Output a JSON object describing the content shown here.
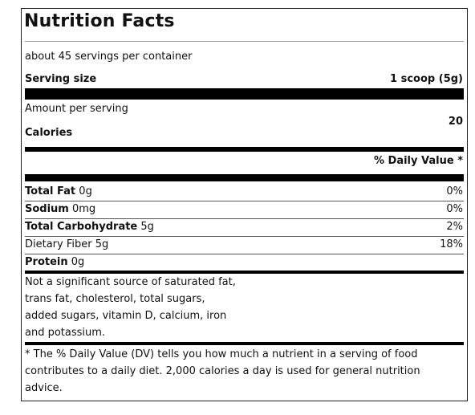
{
  "title": "Nutrition Facts",
  "servings_per_container": "about 45 servings per container",
  "serving_size": {
    "label": "Serving size",
    "value": "1 scoop (5g)"
  },
  "amount_per_serving": "Amount per serving",
  "calories": {
    "label": "Calories",
    "value": "20"
  },
  "daily_value_header": "% Daily Value *",
  "nutrients": [
    {
      "name": "Total Fat",
      "amount": "0g",
      "dv": "0%"
    },
    {
      "name": "Sodium",
      "amount": "0mg",
      "dv": "0%"
    },
    {
      "name": "Total Carbohydrate",
      "amount": "5g",
      "dv": "2%"
    },
    {
      "name": "Dietary Fiber 5g",
      "amount": "",
      "dv": "18%"
    },
    {
      "name": "Protein",
      "amount": "0g",
      "dv": ""
    }
  ],
  "not_significant": [
    "Not a significant source of saturated fat,",
    "trans fat, cholesterol, total sugars,",
    "added sugars, vitamin D, calcium, iron",
    "and potassium."
  ],
  "footnote": [
    "* The % Daily Value (DV) tells you how much a nutrient in a serving of food",
    "contributes to a daily diet. 2,000 calories a day is used for general nutrition",
    "advice."
  ]
}
